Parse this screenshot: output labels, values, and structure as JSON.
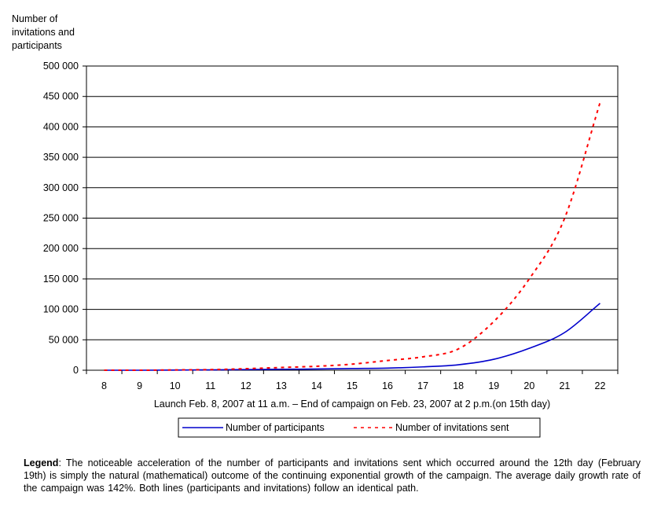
{
  "chart_data": {
    "type": "line",
    "ylabel": "Number of invitations and participants",
    "xlabel": "Launch Feb. 8, 2007 at 11 a.m. – End of campaign on Feb. 23, 2007 at 2 p.m.(on 15th day)",
    "categories": [
      "8",
      "9",
      "10",
      "11",
      "12",
      "13",
      "14",
      "15",
      "16",
      "17",
      "18",
      "19",
      "20",
      "21",
      "22"
    ],
    "ylim": [
      0,
      500000
    ],
    "y_ticks": [
      0,
      50000,
      100000,
      150000,
      200000,
      250000,
      300000,
      350000,
      400000,
      450000,
      500000
    ],
    "y_tick_labels": [
      "0",
      "50 000",
      "100 000",
      "150 000",
      "200 000",
      "250 000",
      "300 000",
      "350 000",
      "400 000",
      "450 000",
      "500 000"
    ],
    "grid": true,
    "legend_position": "bottom",
    "series": [
      {
        "name": "Number of participants",
        "color": "#0000cc",
        "style": "solid",
        "values": [
          0,
          0,
          300,
          600,
          1000,
          1500,
          2000,
          2800,
          3500,
          5500,
          9000,
          18000,
          36000,
          62000,
          110000
        ]
      },
      {
        "name": "Number of invitations sent",
        "color": "#ff0000",
        "style": "dashed",
        "values": [
          0,
          0,
          500,
          1000,
          2500,
          4500,
          6500,
          10000,
          16000,
          22000,
          35000,
          80000,
          150000,
          250000,
          440000
        ]
      }
    ]
  },
  "legend_caption": {
    "label": "Legend",
    "text": ": The noticeable acceleration of the number of participants and invitations sent which occurred around the 12th day (February 19th) is simply the natural (mathematical) outcome of the continuing exponential growth of the campaign. The average daily growth rate of the campaign was 142%. Both lines (participants and invitations) follow an identical path."
  }
}
